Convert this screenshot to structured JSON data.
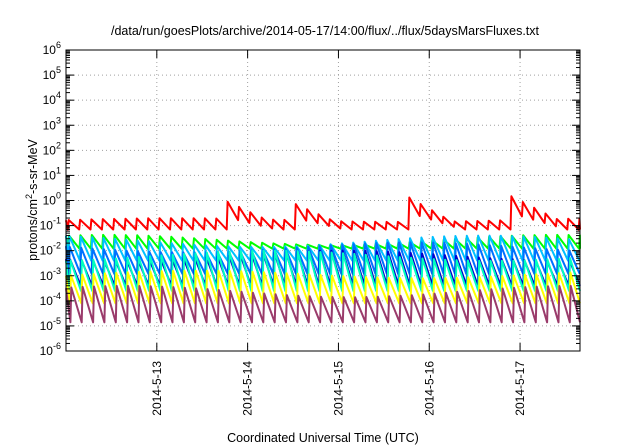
{
  "chart_data": {
    "type": "line",
    "title": "/data/run/goesPlots/archive/2014-05-17/14:00/flux/../flux/5daysMarsFluxes.txt",
    "xlabel": "Coordinated Universal Time (UTC)",
    "ylabel": "protons/cm²-s-sr-MeV",
    "ylabel_parts": {
      "pre": "protons/cm",
      "sup": "2",
      "post": "-s-sr-MeV"
    },
    "y_scale": "log",
    "ylim_exp": [
      -6,
      6
    ],
    "y_tick_base": "10",
    "y_tick_exponents": [
      "-6",
      "-5",
      "-4",
      "-3",
      "-2",
      "-1",
      "0",
      "1",
      "2",
      "3",
      "4",
      "5",
      "6"
    ],
    "xlim_days": [
      12.0,
      17.66
    ],
    "x_ticks": [
      {
        "label": "2014-5-13",
        "day": 13
      },
      {
        "label": "2014-5-14",
        "day": 14
      },
      {
        "label": "2014-5-15",
        "day": 15
      },
      {
        "label": "2014-5-16",
        "day": 16
      },
      {
        "label": "2014-5-17",
        "day": 17
      }
    ],
    "grid": true,
    "grid_style": "dotted",
    "legend": "none",
    "series": [
      {
        "color": "#ff0000",
        "base": 0.07,
        "low": 0.3,
        "high": 0.45,
        "events": [
          [
            13.7,
            0.35,
            0.5
          ],
          [
            14.5,
            0.3,
            0.45
          ],
          [
            15.75,
            0.45,
            0.5
          ],
          [
            16.8,
            0.5,
            0.6
          ]
        ]
      },
      {
        "color": "#00ff00",
        "base": 0.012,
        "low": 0.15,
        "high": 0.55,
        "events": []
      },
      {
        "color": "#00c0ff",
        "base": 0.004,
        "low": 0.55,
        "high": 1.0,
        "events": []
      },
      {
        "color": "#0070ff",
        "base": 0.0012,
        "low": 0.85,
        "high": 1.25,
        "events": []
      },
      {
        "color": "#0000cc",
        "base": 0.0004,
        "low": 1.0,
        "high": 1.4,
        "events": []
      },
      {
        "color": "#00ffc0",
        "base": 0.00025,
        "low": 1.2,
        "high": 1.6,
        "events": []
      },
      {
        "color": "#ffff00",
        "base": 8e-05,
        "low": 1.0,
        "high": 1.3,
        "events": []
      },
      {
        "color": "#9a3b6b",
        "base": 1.4e-05,
        "low": 1.0,
        "high": 1.45,
        "events": []
      }
    ]
  }
}
